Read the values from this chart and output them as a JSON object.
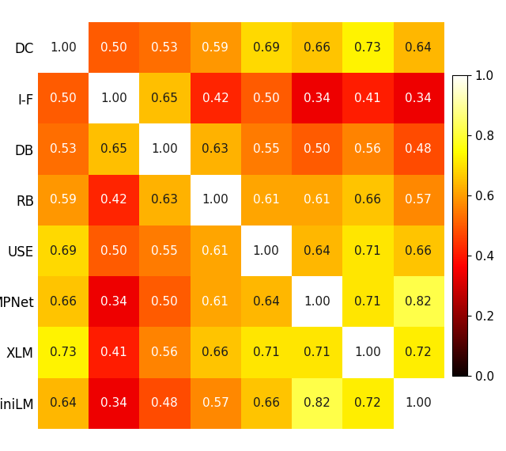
{
  "labels": [
    "DC",
    "I-F",
    "DB",
    "RB",
    "USE",
    "MPNet",
    "XLM",
    "MiniLM"
  ],
  "matrix": [
    [
      1.0,
      0.5,
      0.53,
      0.59,
      0.69,
      0.66,
      0.73,
      0.64
    ],
    [
      0.5,
      1.0,
      0.65,
      0.42,
      0.5,
      0.34,
      0.41,
      0.34
    ],
    [
      0.53,
      0.65,
      1.0,
      0.63,
      0.55,
      0.5,
      0.56,
      0.48
    ],
    [
      0.59,
      0.42,
      0.63,
      1.0,
      0.61,
      0.61,
      0.66,
      0.57
    ],
    [
      0.69,
      0.5,
      0.55,
      0.61,
      1.0,
      0.64,
      0.71,
      0.66
    ],
    [
      0.66,
      0.34,
      0.5,
      0.61,
      0.64,
      1.0,
      0.71,
      0.82
    ],
    [
      0.73,
      0.41,
      0.56,
      0.66,
      0.71,
      0.71,
      1.0,
      0.72
    ],
    [
      0.64,
      0.34,
      0.48,
      0.57,
      0.66,
      0.82,
      0.72,
      1.0
    ]
  ],
  "vmin": 0.0,
  "vmax": 1.0,
  "cmap": "hot",
  "text_color_threshold": 0.62,
  "figsize": [
    6.4,
    5.7
  ],
  "dpi": 100,
  "fontsize_cell": 11,
  "fontsize_label": 12,
  "colorbar_ticks": [
    0.0,
    0.2,
    0.4,
    0.6,
    0.8,
    1.0
  ]
}
